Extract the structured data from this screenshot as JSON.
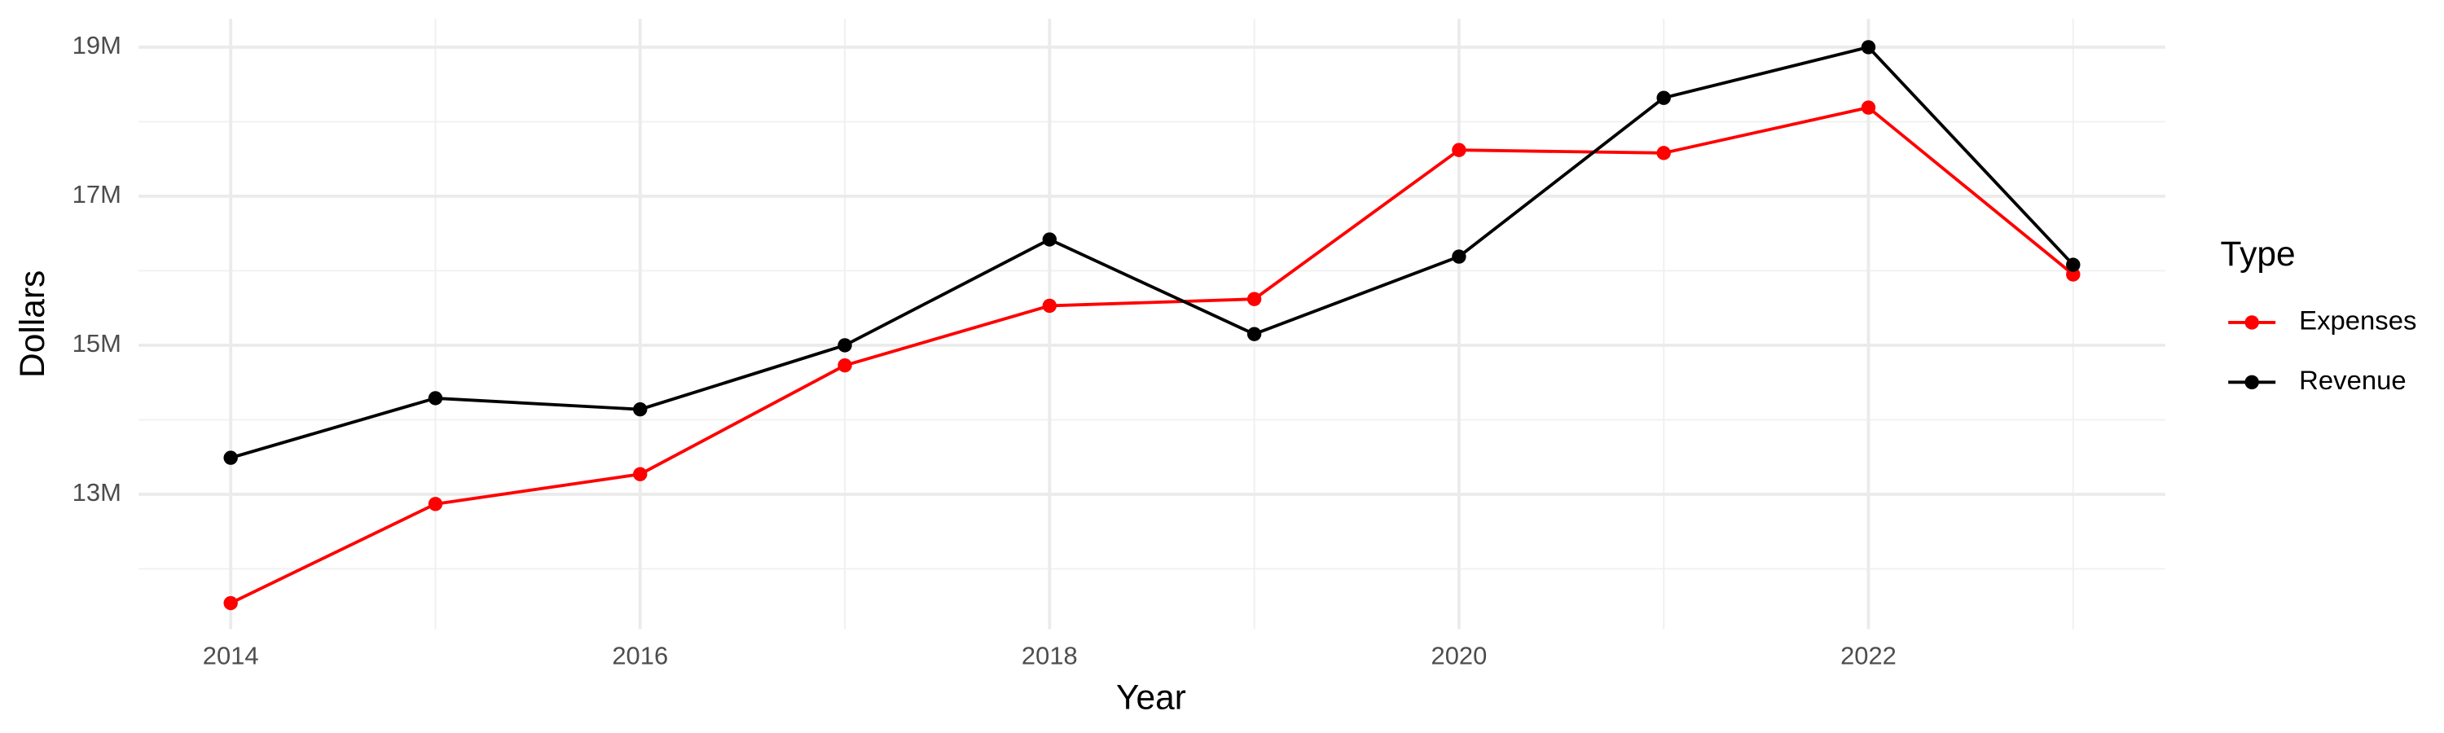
{
  "chart_data": {
    "type": "line",
    "x_label": "Year",
    "y_label": "Dollars",
    "x": [
      2014,
      2015,
      2016,
      2017,
      2018,
      2019,
      2020,
      2021,
      2022,
      2023
    ],
    "series": [
      {
        "name": "Expenses",
        "color": "#ff0000",
        "values": [
          11540000,
          12870000,
          13270000,
          14730000,
          15530000,
          15620000,
          17620000,
          17580000,
          18190000,
          15950000
        ]
      },
      {
        "name": "Revenue",
        "color": "#000000",
        "values": [
          13490000,
          14290000,
          14140000,
          15000000,
          16420000,
          15150000,
          16190000,
          18320000,
          19000000,
          16080000
        ]
      }
    ],
    "xlim": [
      2013.55,
      2023.45
    ],
    "xticks": [
      2014,
      2016,
      2018,
      2020,
      2022
    ],
    "x_minor_ticks": [
      2015,
      2017,
      2019,
      2021,
      2023
    ],
    "ylim": [
      11190000,
      19380000
    ],
    "yticks": [
      {
        "value": 13000000,
        "label": "13M"
      },
      {
        "value": 15000000,
        "label": "15M"
      },
      {
        "value": 17000000,
        "label": "17M"
      },
      {
        "value": 19000000,
        "label": "19M"
      }
    ],
    "y_minor_ticks": [
      12000000,
      14000000,
      16000000,
      18000000
    ],
    "grid": true,
    "legend_title": "Type",
    "legend_position": "right"
  }
}
